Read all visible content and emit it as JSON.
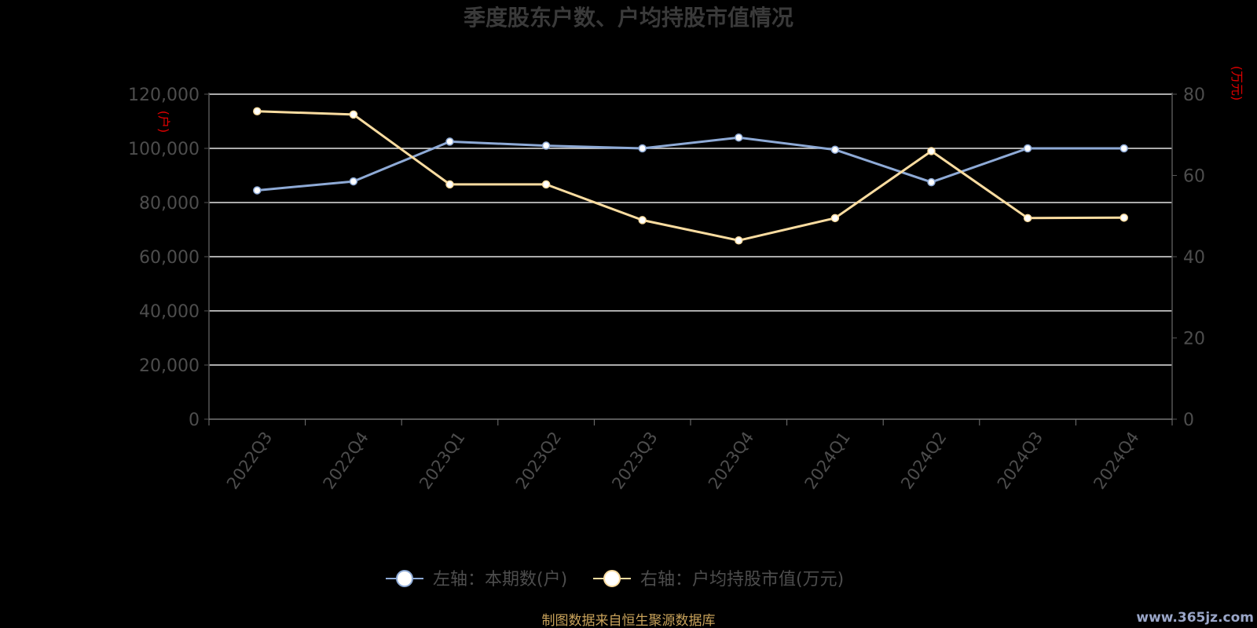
{
  "chart_data": {
    "type": "line",
    "title": "季度股东户数、户均持股市值情况",
    "categories": [
      "2022Q3",
      "2022Q4",
      "2023Q1",
      "2023Q2",
      "2023Q3",
      "2023Q4",
      "2024Q1",
      "2024Q2",
      "2024Q3",
      "2024Q4"
    ],
    "left_axis": {
      "unit": "(户)",
      "min": 0,
      "max": 120000,
      "ticks": [
        "0",
        "20,000",
        "40,000",
        "60,000",
        "80,000",
        "100,000",
        "120,000"
      ]
    },
    "right_axis": {
      "unit": "(万元)",
      "min": 0,
      "max": 80,
      "ticks": [
        "0",
        "20",
        "40",
        "60",
        "80"
      ]
    },
    "series": [
      {
        "name": "左轴：本期数(户)",
        "axis": "left",
        "color": "#8eaad6",
        "values": [
          84500,
          87800,
          102500,
          101000,
          100000,
          104000,
          99500,
          87500,
          100000,
          100000
        ]
      },
      {
        "name": "右轴：户均持股市值(万元)",
        "axis": "right",
        "color": "#fadca0",
        "values": [
          75.8,
          75.0,
          57.8,
          57.8,
          49.0,
          44.0,
          49.5,
          66.0,
          49.5,
          49.6
        ]
      }
    ],
    "grid": true,
    "legend_position": "bottom"
  },
  "footer": {
    "source": "制图数据来自恒生聚源数据库",
    "watermark": "www.365jz.com"
  }
}
